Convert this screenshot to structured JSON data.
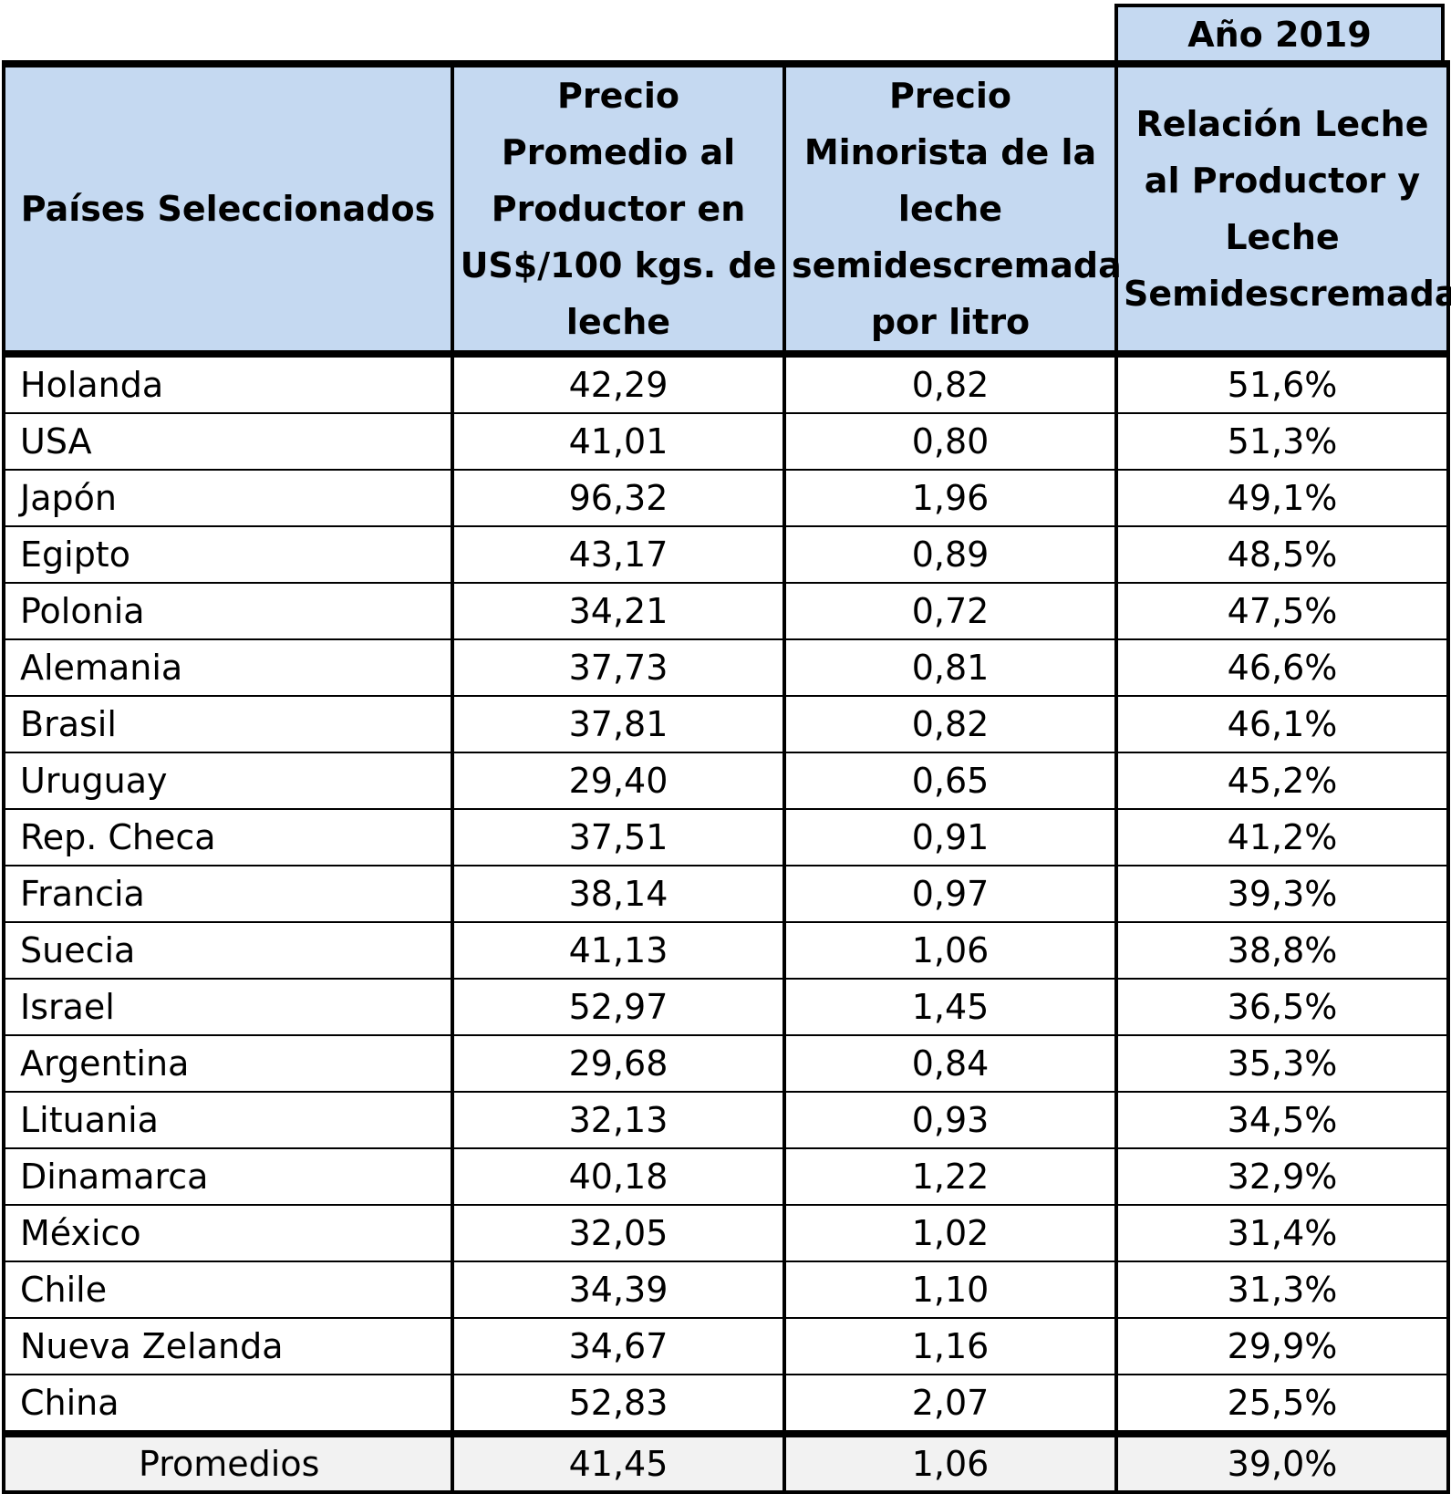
{
  "year_label": "Año 2019",
  "headers": {
    "country": "Países Seleccionados",
    "producer_price": "Precio Promedio al Productor en US$/100 kgs. de leche",
    "retail_price": "Precio Minorista de la leche semidescremada por litro",
    "ratio": "Relación Leche al Productor y Leche Semidescremada"
  },
  "rows": [
    {
      "country": "Holanda",
      "producer_price": "42,29",
      "retail_price": "0,82",
      "ratio": "51,6%"
    },
    {
      "country": "USA",
      "producer_price": "41,01",
      "retail_price": "0,80",
      "ratio": "51,3%"
    },
    {
      "country": "Japón",
      "producer_price": "96,32",
      "retail_price": "1,96",
      "ratio": "49,1%"
    },
    {
      "country": "Egipto",
      "producer_price": "43,17",
      "retail_price": "0,89",
      "ratio": "48,5%"
    },
    {
      "country": "Polonia",
      "producer_price": "34,21",
      "retail_price": "0,72",
      "ratio": "47,5%"
    },
    {
      "country": "Alemania",
      "producer_price": "37,73",
      "retail_price": "0,81",
      "ratio": "46,6%"
    },
    {
      "country": "Brasil",
      "producer_price": "37,81",
      "retail_price": "0,82",
      "ratio": "46,1%"
    },
    {
      "country": "Uruguay",
      "producer_price": "29,40",
      "retail_price": "0,65",
      "ratio": "45,2%"
    },
    {
      "country": "Rep. Checa",
      "producer_price": "37,51",
      "retail_price": "0,91",
      "ratio": "41,2%"
    },
    {
      "country": "Francia",
      "producer_price": "38,14",
      "retail_price": "0,97",
      "ratio": "39,3%"
    },
    {
      "country": "Suecia",
      "producer_price": "41,13",
      "retail_price": "1,06",
      "ratio": "38,8%"
    },
    {
      "country": "Israel",
      "producer_price": "52,97",
      "retail_price": "1,45",
      "ratio": "36,5%"
    },
    {
      "country": "Argentina",
      "producer_price": "29,68",
      "retail_price": "0,84",
      "ratio": "35,3%"
    },
    {
      "country": "Lituania",
      "producer_price": "32,13",
      "retail_price": "0,93",
      "ratio": "34,5%"
    },
    {
      "country": "Dinamarca",
      "producer_price": "40,18",
      "retail_price": "1,22",
      "ratio": "32,9%"
    },
    {
      "country": "México",
      "producer_price": "32,05",
      "retail_price": "1,02",
      "ratio": "31,4%"
    },
    {
      "country": "Chile",
      "producer_price": "34,39",
      "retail_price": "1,10",
      "ratio": "31,3%"
    },
    {
      "country": "Nueva Zelanda",
      "producer_price": "34,67",
      "retail_price": "1,16",
      "ratio": "29,9%"
    },
    {
      "country": "China",
      "producer_price": "52,83",
      "retail_price": "2,07",
      "ratio": "25,5%"
    }
  ],
  "averages": {
    "label": "Promedios",
    "producer_price": "41,45",
    "retail_price": "1,06",
    "ratio": "39,0%"
  },
  "colors": {
    "header_bg": "#c5d9f1",
    "average_bg": "#f2f2f2",
    "border": "#000000"
  }
}
